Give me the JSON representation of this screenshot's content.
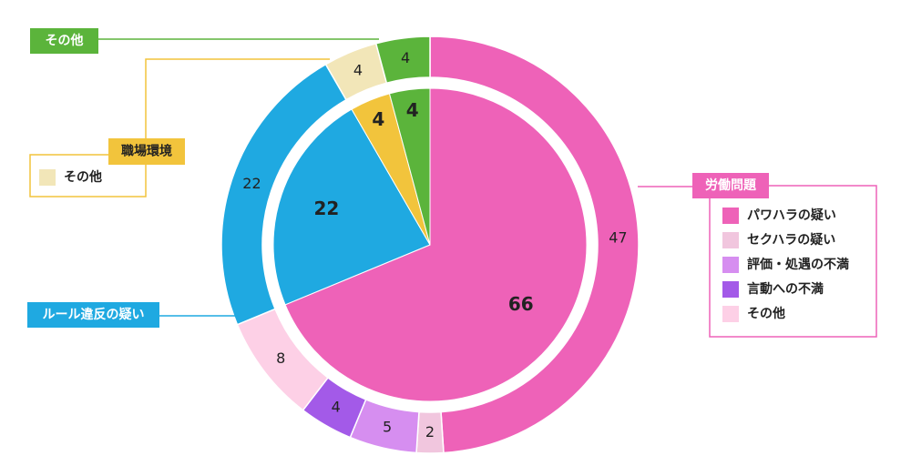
{
  "chart_data": {
    "type": "sunburst",
    "series": [
      {
        "name": "労働問題",
        "color": "#ee62b8",
        "value": 66,
        "children": [
          {
            "name": "パワハラの疑い",
            "color": "#ee62b8",
            "value": 47
          },
          {
            "name": "セクハラの疑い",
            "color": "#f1c6de",
            "value": 2
          },
          {
            "name": "評価・処遇の不満",
            "color": "#d68ef0",
            "value": 5
          },
          {
            "name": "言動への不満",
            "color": "#a35ae8",
            "value": 4
          },
          {
            "name": "その他",
            "color": "#fdd0e6",
            "value": 8
          }
        ]
      },
      {
        "name": "ルール違反の疑い",
        "color": "#1fa9e1",
        "value": 22,
        "children": [
          {
            "color": "#1fa9e1",
            "value": 22
          }
        ]
      },
      {
        "name": "職場環境",
        "color": "#f2c43c",
        "value": 4,
        "children": [
          {
            "name": "その他",
            "color": "#f2e6b8",
            "value": 4
          }
        ]
      },
      {
        "name": "その他",
        "color": "#5bb43b",
        "value": 4,
        "children": [
          {
            "color": "#5bb43b",
            "value": 4
          }
        ]
      }
    ]
  }
}
